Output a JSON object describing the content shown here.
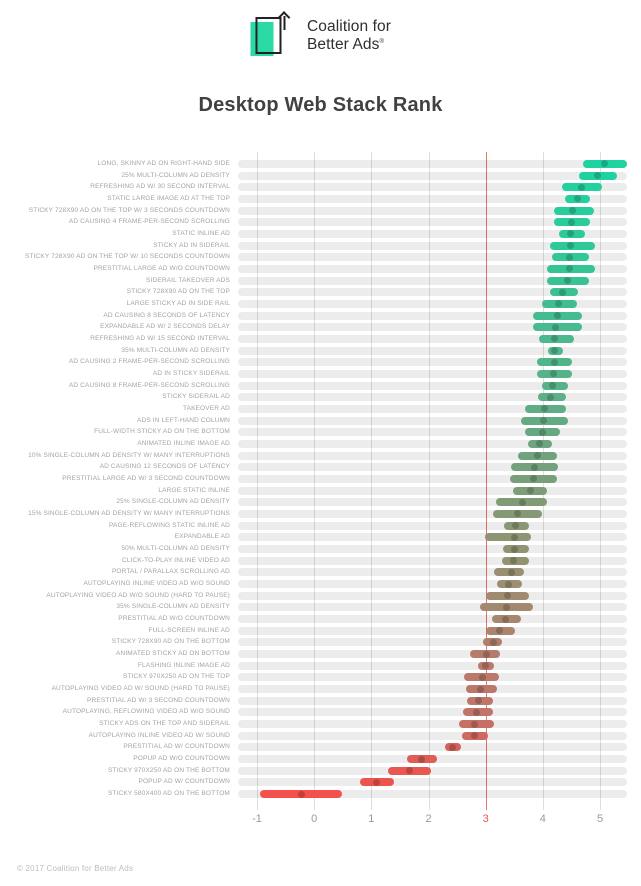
{
  "logo": {
    "line1": "Coalition for",
    "line2": "Better Ads",
    "registered": "®",
    "accent_color": "#2bd9a7"
  },
  "title": "Desktop Web Stack Rank",
  "footer": "© 2017 Coalition for Better Ads",
  "chart_data": {
    "type": "bar",
    "subtype": "horizontal-range-with-mean-dot",
    "title": "Desktop Web Stack Rank",
    "xlabel": "",
    "ylabel": "",
    "xlim": [
      -1.4,
      5.55
    ],
    "x_ticks": [
      -1,
      0,
      1,
      2,
      3,
      4,
      5
    ],
    "grid": true,
    "threshold": {
      "value": 3,
      "line_color": "#e8766c",
      "label_color": "#ef5350"
    },
    "track_color": "#ececec",
    "rows": [
      {
        "label": "LONG, SKINNY AD ON RIGHT-HAND SIDE",
        "lo": 4.63,
        "hi": 5.48,
        "mean": 5.01,
        "color": "#1ed3a2"
      },
      {
        "label": "25% MULTI-COLUMN AD DENSITY",
        "lo": 4.56,
        "hi": 5.22,
        "mean": 4.88,
        "color": "#20d2a1"
      },
      {
        "label": "REFRESHING AD W/ 30 SECOND INTERVAL",
        "lo": 4.26,
        "hi": 4.96,
        "mean": 4.6,
        "color": "#23d09f"
      },
      {
        "label": "STATIC LARGE IMAGE AD AT THE TOP",
        "lo": 4.31,
        "hi": 4.75,
        "mean": 4.54,
        "color": "#25cf9e"
      },
      {
        "label": "STICKY 728X90 AD ON THE TOP W/ 3 SECONDS COUNTDOWN",
        "lo": 4.12,
        "hi": 4.83,
        "mean": 4.45,
        "color": "#27cd9c"
      },
      {
        "label": "AD CAUSING 4 FRAME-PER-SECOND SCROLLING",
        "lo": 4.12,
        "hi": 4.76,
        "mean": 4.43,
        "color": "#29cc9b"
      },
      {
        "label": "STATIC INLINE AD",
        "lo": 4.21,
        "hi": 4.66,
        "mean": 4.42,
        "color": "#2cca99"
      },
      {
        "label": "STICKY AD IN SIDERAIL",
        "lo": 4.05,
        "hi": 4.84,
        "mean": 4.41,
        "color": "#2ec998"
      },
      {
        "label": "STICKY 728X90 AD ON THE TOP W/ 10 SECONDS COUNTDOWN",
        "lo": 4.09,
        "hi": 4.73,
        "mean": 4.4,
        "color": "#32c797"
      },
      {
        "label": "PRESTITIAL LARGE AD W/O COUNTDOWN",
        "lo": 4.0,
        "hi": 4.84,
        "mean": 4.39,
        "color": "#35c595"
      },
      {
        "label": "SIDERAIL TAKEOVER ADS",
        "lo": 4.01,
        "hi": 4.73,
        "mean": 4.37,
        "color": "#39c294"
      },
      {
        "label": "STICKY 728X90 AD ON THE TOP",
        "lo": 4.05,
        "hi": 4.54,
        "mean": 4.28,
        "color": "#3dc092"
      },
      {
        "label": "LARGE STICKY AD IN SIDE RAIL",
        "lo": 3.91,
        "hi": 4.52,
        "mean": 4.21,
        "color": "#40be91"
      },
      {
        "label": "AD CAUSING 8 SECONDS OF LATENCY",
        "lo": 3.76,
        "hi": 4.62,
        "mean": 4.19,
        "color": "#44bc8f"
      },
      {
        "label": "EXPANDABLE AD W/ 2 SECONDS DELAY",
        "lo": 3.75,
        "hi": 4.61,
        "mean": 4.16,
        "color": "#47ba8e"
      },
      {
        "label": "REFRESHING AD W/ 15 SECOND INTERVAL",
        "lo": 3.86,
        "hi": 4.48,
        "mean": 4.14,
        "color": "#4bb88d"
      },
      {
        "label": "35% MULTI-COLUMN AD DENSITY",
        "lo": 4.02,
        "hi": 4.28,
        "mean": 4.14,
        "color": "#4eb78b"
      },
      {
        "label": "AD CAUSING 2 FRAME-PER-SECOND SCROLLING",
        "lo": 3.83,
        "hi": 4.44,
        "mean": 4.13,
        "color": "#51b58a"
      },
      {
        "label": "AD IN STICKY SIDERAIL",
        "lo": 3.83,
        "hi": 4.44,
        "mean": 4.12,
        "color": "#55b389"
      },
      {
        "label": "AD CAUSING 8 FRAME-PER-SECOND SCROLLING",
        "lo": 3.92,
        "hi": 4.37,
        "mean": 4.1,
        "color": "#58b188"
      },
      {
        "label": "STICKY SIDERAIL AD",
        "lo": 3.85,
        "hi": 4.33,
        "mean": 4.06,
        "color": "#5caf86"
      },
      {
        "label": "TAKEOVER AD",
        "lo": 3.61,
        "hi": 4.33,
        "mean": 3.96,
        "color": "#60ac84"
      },
      {
        "label": "ADS IN LEFT-HAND COLUMN",
        "lo": 3.54,
        "hi": 4.37,
        "mean": 3.94,
        "color": "#64aa83"
      },
      {
        "label": "FULL-WIDTH STICKY AD ON THE BOTTOM",
        "lo": 3.61,
        "hi": 4.23,
        "mean": 3.92,
        "color": "#68a881"
      },
      {
        "label": "ANIMATED INLINE IMAGE AD",
        "lo": 3.67,
        "hi": 4.09,
        "mean": 3.88,
        "color": "#6ca57f"
      },
      {
        "label": "10% SINGLE-COLUMN AD DENSITY W/ MANY INTERRUPTIONS",
        "lo": 3.5,
        "hi": 4.17,
        "mean": 3.83,
        "color": "#70a37d"
      },
      {
        "label": "AD CAUSING 12 SECONDS OF LATENCY",
        "lo": 3.37,
        "hi": 4.2,
        "mean": 3.78,
        "color": "#74a17b"
      },
      {
        "label": "PRESTITIAL LARGE AD W/ 3 SECOND COUNTDOWN",
        "lo": 3.35,
        "hi": 4.17,
        "mean": 3.76,
        "color": "#789f7a"
      },
      {
        "label": "LARGE STATIC INLINE",
        "lo": 3.41,
        "hi": 4.01,
        "mean": 3.71,
        "color": "#7d9d78"
      },
      {
        "label": "25% SINGLE-COLUMN AD DENSITY",
        "lo": 3.11,
        "hi": 4.01,
        "mean": 3.57,
        "color": "#819b77"
      },
      {
        "label": "15% SINGLE-COLUMN AD DENSITY W/ MANY INTERRUPTIONS",
        "lo": 3.06,
        "hi": 3.92,
        "mean": 3.49,
        "color": "#859975"
      },
      {
        "label": "PAGE-REFLOWING STATIC INLINE AD",
        "lo": 3.25,
        "hi": 3.68,
        "mean": 3.46,
        "color": "#899774"
      },
      {
        "label": "EXPANDABLE AD",
        "lo": 2.92,
        "hi": 3.73,
        "mean": 3.44,
        "color": "#8d9573"
      },
      {
        "label": "50% MULTI-COLUMN AD DENSITY",
        "lo": 3.23,
        "hi": 3.69,
        "mean": 3.43,
        "color": "#919472"
      },
      {
        "label": "CLICK-TO-PLAY INLINE VIDEO AD",
        "lo": 3.21,
        "hi": 3.68,
        "mean": 3.41,
        "color": "#959271"
      },
      {
        "label": "PORTAL / PARALLAX SCROLLING AD",
        "lo": 3.08,
        "hi": 3.6,
        "mean": 3.38,
        "color": "#999071"
      },
      {
        "label": "AUTOPLAYING INLINE VIDEO AD W/O SOUND",
        "lo": 3.12,
        "hi": 3.56,
        "mean": 3.33,
        "color": "#9c8e70"
      },
      {
        "label": "AUTOPLAYING VIDEO AD W/O SOUND (HARD TO PAUSE)",
        "lo": 2.94,
        "hi": 3.68,
        "mean": 3.31,
        "color": "#a08b70"
      },
      {
        "label": "35% SINGLE-COLUMN AD DENSITY",
        "lo": 2.83,
        "hi": 3.76,
        "mean": 3.29,
        "color": "#a3896f"
      },
      {
        "label": "PRESTITIAL AD W/O COUNTDOWN",
        "lo": 3.04,
        "hi": 3.55,
        "mean": 3.27,
        "color": "#a7866e"
      },
      {
        "label": "FULL-SCREEN INLINE AD",
        "lo": 2.93,
        "hi": 3.44,
        "mean": 3.18,
        "color": "#ac836d"
      },
      {
        "label": "STICKY 728X90 AD ON THE BOTTOM",
        "lo": 2.88,
        "hi": 3.21,
        "mean": 3.06,
        "color": "#b07f6c"
      },
      {
        "label": "ANIMATED STICKY AD ON BOTTOM",
        "lo": 2.65,
        "hi": 3.18,
        "mean": 2.94,
        "color": "#b47c6b"
      },
      {
        "label": "FLASHING INLINE IMAGE AD",
        "lo": 2.8,
        "hi": 3.08,
        "mean": 2.93,
        "color": "#b77a6b"
      },
      {
        "label": "STICKY 970X250 AD ON THE TOP",
        "lo": 2.55,
        "hi": 3.17,
        "mean": 2.87,
        "color": "#b9796b"
      },
      {
        "label": "AUTOPLAYING VIDEO AD W/ SOUND (HARD TO PAUSE)",
        "lo": 2.58,
        "hi": 3.12,
        "mean": 2.84,
        "color": "#bc776a"
      },
      {
        "label": "PRESTITIAL AD W/ 3 SECOND COUNTDOWN",
        "lo": 2.61,
        "hi": 3.05,
        "mean": 2.81,
        "color": "#be766a"
      },
      {
        "label": "AUTOPLAYING, REFLOWING VIDEO AD W/O SOUND",
        "lo": 2.54,
        "hi": 3.06,
        "mean": 2.77,
        "color": "#c1746a"
      },
      {
        "label": "STICKY ADS ON THE TOP AND SIDERAIL",
        "lo": 2.47,
        "hi": 3.08,
        "mean": 2.74,
        "color": "#c76e65"
      },
      {
        "label": "AUTOPLAYING INLINE VIDEO AD W/ SOUND",
        "lo": 2.52,
        "hi": 2.97,
        "mean": 2.73,
        "color": "#cd695f"
      },
      {
        "label": "PRESTITIAL AD W/ COUNTDOWN",
        "lo": 2.22,
        "hi": 2.5,
        "mean": 2.35,
        "color": "#d3635a"
      },
      {
        "label": "POPUP AD W/O COUNTDOWN",
        "lo": 1.56,
        "hi": 2.08,
        "mean": 1.81,
        "color": "#de5d55"
      },
      {
        "label": "STICKY 970X250 AD ON THE BOTTOM",
        "lo": 1.22,
        "hi": 1.98,
        "mean": 1.6,
        "color": "#e85750"
      },
      {
        "label": "POPUP AD W/ COUNTDOWN",
        "lo": 0.73,
        "hi": 1.33,
        "mean": 1.02,
        "color": "#ee544e"
      },
      {
        "label": "STICKY 580X400 AD ON THE BOTTOM",
        "lo": -1.02,
        "hi": 0.42,
        "mean": -0.3,
        "color": "#f4504c"
      }
    ]
  }
}
